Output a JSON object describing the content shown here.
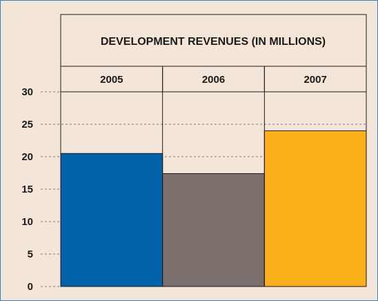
{
  "chart_data": {
    "type": "bar",
    "title": "DEVELOPMENT REVENUES (IN MILLIONS)",
    "categories": [
      "2005",
      "2006",
      "2007"
    ],
    "values": [
      20.5,
      17.4,
      24.0
    ],
    "colors": [
      "#0062a8",
      "#7b706c",
      "#fbaf1b"
    ],
    "yticks": [
      0,
      5,
      10,
      15,
      20,
      25,
      30
    ],
    "ylim": [
      0,
      30
    ],
    "grid": true,
    "xlabel": "",
    "ylabel": ""
  }
}
